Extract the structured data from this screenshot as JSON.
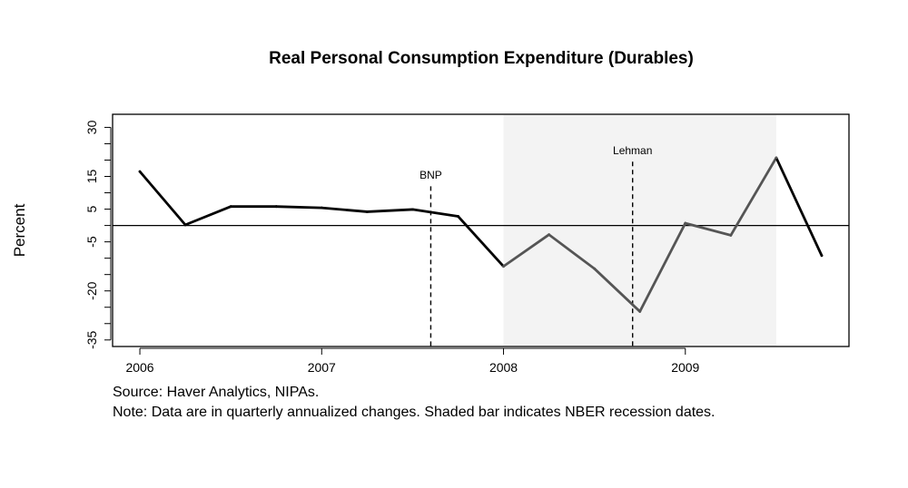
{
  "chart_data": {
    "type": "line",
    "title": "Real Personal Consumption Expenditure (Durables)",
    "ylabel": "Percent",
    "xlabel": "",
    "ylim": [
      -37,
      34
    ],
    "xlim": [
      2005.85,
      2009.9
    ],
    "y_ticks": [
      30,
      15,
      5,
      -5,
      -20,
      -35
    ],
    "y_minor_ticks": [
      30,
      25,
      20,
      15,
      10,
      5,
      0,
      -5,
      -10,
      -15,
      -20,
      -25,
      -30,
      -35
    ],
    "x_ticks": [
      {
        "value": 2006,
        "label": "2006"
      },
      {
        "value": 2007,
        "label": "2007"
      },
      {
        "value": 2008,
        "label": "2008"
      },
      {
        "value": 2009,
        "label": "2009"
      }
    ],
    "reference_line": 0,
    "recession_shading": {
      "start": 2008.0,
      "end": 2009.5,
      "color": "#f3f3f3"
    },
    "series": [
      {
        "color_normal": "#000000",
        "color_recession": "#555555",
        "x": [
          2006.0,
          2006.25,
          2006.5,
          2006.75,
          2007.0,
          2007.25,
          2007.5,
          2007.75,
          2008.0,
          2008.25,
          2008.5,
          2008.75,
          2009.0,
          2009.25,
          2009.5,
          2009.75
        ],
        "values": [
          16.5,
          0.2,
          5.8,
          5.8,
          5.4,
          4.2,
          4.9,
          2.8,
          -12.5,
          -2.8,
          -13.2,
          -26.3,
          0.7,
          -3.0,
          20.7,
          -9.2
        ]
      }
    ],
    "annotations": [
      {
        "x": 2007.6,
        "label": "BNP",
        "line_top": 12.0,
        "label_y": 14.3
      },
      {
        "x": 2008.71,
        "label": "Lehman",
        "line_top": 19.5,
        "label_y": 21.8
      }
    ]
  },
  "notes": {
    "source": "Source: Haver Analytics, NIPAs.",
    "note": "Note: Data are in quarterly annualized changes. Shaded bar indicates NBER recession dates."
  }
}
